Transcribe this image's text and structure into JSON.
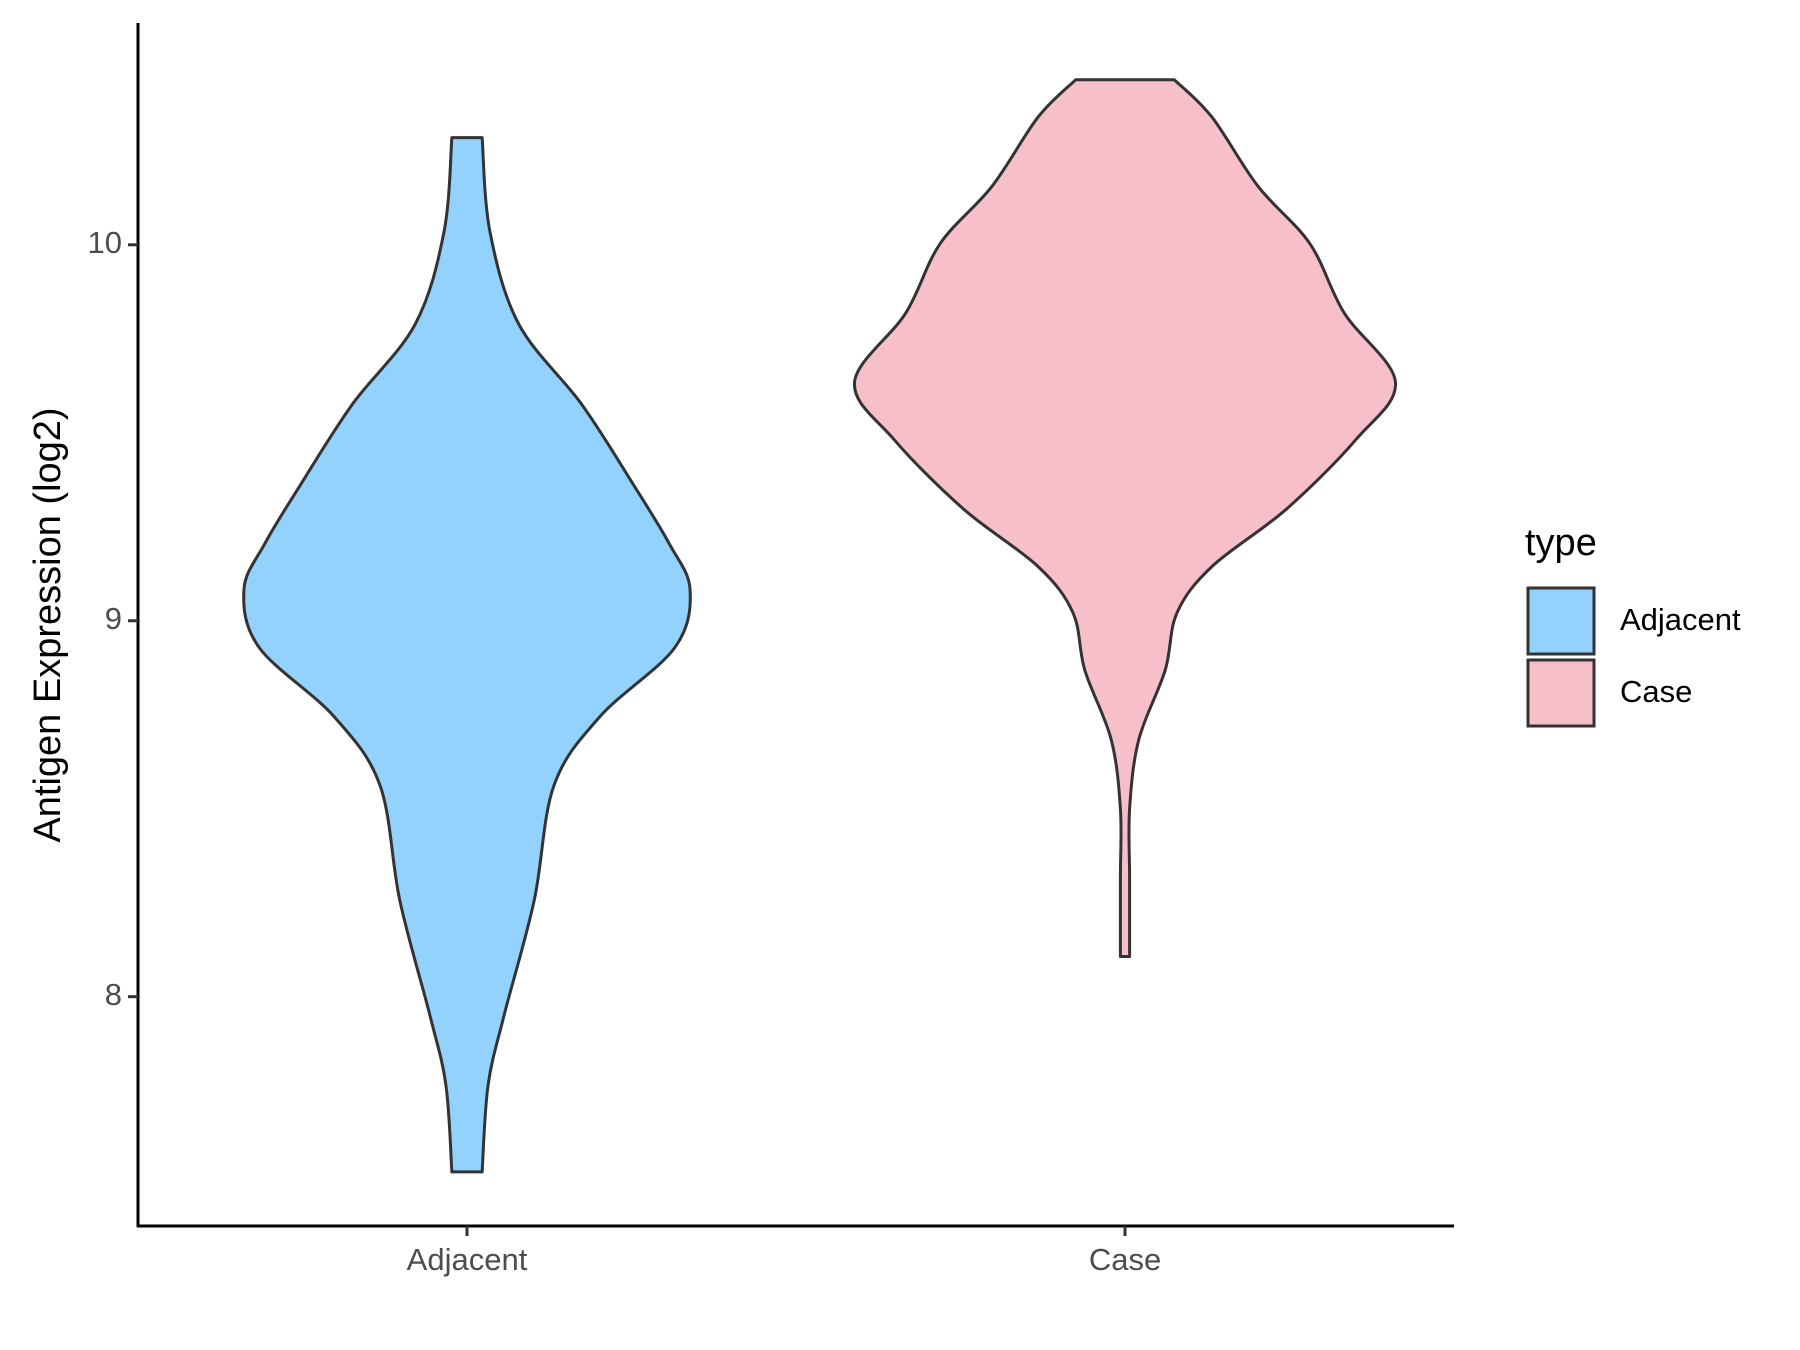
{
  "chart_data": {
    "type": "violin",
    "y_label": "Antigen Expression (log2)",
    "categories": [
      "Adjacent",
      "Case"
    ],
    "legend_title": "type",
    "legend_position": "right",
    "ylim": [
      7.39,
      10.59
    ],
    "yticks": [
      8,
      9,
      10
    ],
    "series": [
      {
        "name": "Adjacent",
        "color": "#92d2fd",
        "y": [
          10.285,
          10.034,
          9.788,
          9.574,
          9.359,
          9.206,
          9.083,
          8.929,
          8.745,
          8.561,
          8.255,
          7.948,
          7.764,
          7.534
        ],
        "width": [
          0.023,
          0.035,
          0.079,
          0.175,
          0.254,
          0.307,
          0.339,
          0.316,
          0.202,
          0.132,
          0.102,
          0.056,
          0.032,
          0.023
        ]
      },
      {
        "name": "Case",
        "color": "#f7bfca",
        "y": [
          10.439,
          10.34,
          10.156,
          10.003,
          9.819,
          9.635,
          9.482,
          9.298,
          9.144,
          9.021,
          8.868,
          8.684,
          8.5,
          8.316,
          8.107
        ],
        "width": [
          0.075,
          0.132,
          0.202,
          0.281,
          0.333,
          0.411,
          0.351,
          0.246,
          0.132,
          0.079,
          0.061,
          0.021,
          0.007,
          0.007,
          0.007
        ]
      }
    ]
  }
}
